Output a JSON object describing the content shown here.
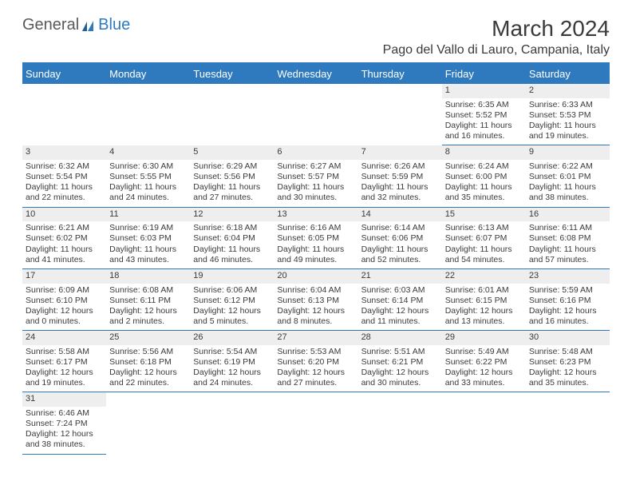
{
  "logo": {
    "text1": "General",
    "text2": "Blue",
    "color1": "#5a5a5a",
    "color2": "#2f7abf"
  },
  "title": "March 2024",
  "subtitle": "Pago del Vallo di Lauro, Campania, Italy",
  "weekdays": [
    "Sunday",
    "Monday",
    "Tuesday",
    "Wednesday",
    "Thursday",
    "Friday",
    "Saturday"
  ],
  "colors": {
    "header_bg": "#2f7abf",
    "header_fg": "#ffffff",
    "daynum_bg": "#eeeeee",
    "border": "#2f7abf",
    "text": "#3a3a3a"
  },
  "grid": [
    [
      null,
      null,
      null,
      null,
      null,
      {
        "n": "1",
        "r": "Sunrise: 6:35 AM",
        "s": "Sunset: 5:52 PM",
        "d1": "Daylight: 11 hours",
        "d2": "and 16 minutes."
      },
      {
        "n": "2",
        "r": "Sunrise: 6:33 AM",
        "s": "Sunset: 5:53 PM",
        "d1": "Daylight: 11 hours",
        "d2": "and 19 minutes."
      }
    ],
    [
      {
        "n": "3",
        "r": "Sunrise: 6:32 AM",
        "s": "Sunset: 5:54 PM",
        "d1": "Daylight: 11 hours",
        "d2": "and 22 minutes."
      },
      {
        "n": "4",
        "r": "Sunrise: 6:30 AM",
        "s": "Sunset: 5:55 PM",
        "d1": "Daylight: 11 hours",
        "d2": "and 24 minutes."
      },
      {
        "n": "5",
        "r": "Sunrise: 6:29 AM",
        "s": "Sunset: 5:56 PM",
        "d1": "Daylight: 11 hours",
        "d2": "and 27 minutes."
      },
      {
        "n": "6",
        "r": "Sunrise: 6:27 AM",
        "s": "Sunset: 5:57 PM",
        "d1": "Daylight: 11 hours",
        "d2": "and 30 minutes."
      },
      {
        "n": "7",
        "r": "Sunrise: 6:26 AM",
        "s": "Sunset: 5:59 PM",
        "d1": "Daylight: 11 hours",
        "d2": "and 32 minutes."
      },
      {
        "n": "8",
        "r": "Sunrise: 6:24 AM",
        "s": "Sunset: 6:00 PM",
        "d1": "Daylight: 11 hours",
        "d2": "and 35 minutes."
      },
      {
        "n": "9",
        "r": "Sunrise: 6:22 AM",
        "s": "Sunset: 6:01 PM",
        "d1": "Daylight: 11 hours",
        "d2": "and 38 minutes."
      }
    ],
    [
      {
        "n": "10",
        "r": "Sunrise: 6:21 AM",
        "s": "Sunset: 6:02 PM",
        "d1": "Daylight: 11 hours",
        "d2": "and 41 minutes."
      },
      {
        "n": "11",
        "r": "Sunrise: 6:19 AM",
        "s": "Sunset: 6:03 PM",
        "d1": "Daylight: 11 hours",
        "d2": "and 43 minutes."
      },
      {
        "n": "12",
        "r": "Sunrise: 6:18 AM",
        "s": "Sunset: 6:04 PM",
        "d1": "Daylight: 11 hours",
        "d2": "and 46 minutes."
      },
      {
        "n": "13",
        "r": "Sunrise: 6:16 AM",
        "s": "Sunset: 6:05 PM",
        "d1": "Daylight: 11 hours",
        "d2": "and 49 minutes."
      },
      {
        "n": "14",
        "r": "Sunrise: 6:14 AM",
        "s": "Sunset: 6:06 PM",
        "d1": "Daylight: 11 hours",
        "d2": "and 52 minutes."
      },
      {
        "n": "15",
        "r": "Sunrise: 6:13 AM",
        "s": "Sunset: 6:07 PM",
        "d1": "Daylight: 11 hours",
        "d2": "and 54 minutes."
      },
      {
        "n": "16",
        "r": "Sunrise: 6:11 AM",
        "s": "Sunset: 6:08 PM",
        "d1": "Daylight: 11 hours",
        "d2": "and 57 minutes."
      }
    ],
    [
      {
        "n": "17",
        "r": "Sunrise: 6:09 AM",
        "s": "Sunset: 6:10 PM",
        "d1": "Daylight: 12 hours",
        "d2": "and 0 minutes."
      },
      {
        "n": "18",
        "r": "Sunrise: 6:08 AM",
        "s": "Sunset: 6:11 PM",
        "d1": "Daylight: 12 hours",
        "d2": "and 2 minutes."
      },
      {
        "n": "19",
        "r": "Sunrise: 6:06 AM",
        "s": "Sunset: 6:12 PM",
        "d1": "Daylight: 12 hours",
        "d2": "and 5 minutes."
      },
      {
        "n": "20",
        "r": "Sunrise: 6:04 AM",
        "s": "Sunset: 6:13 PM",
        "d1": "Daylight: 12 hours",
        "d2": "and 8 minutes."
      },
      {
        "n": "21",
        "r": "Sunrise: 6:03 AM",
        "s": "Sunset: 6:14 PM",
        "d1": "Daylight: 12 hours",
        "d2": "and 11 minutes."
      },
      {
        "n": "22",
        "r": "Sunrise: 6:01 AM",
        "s": "Sunset: 6:15 PM",
        "d1": "Daylight: 12 hours",
        "d2": "and 13 minutes."
      },
      {
        "n": "23",
        "r": "Sunrise: 5:59 AM",
        "s": "Sunset: 6:16 PM",
        "d1": "Daylight: 12 hours",
        "d2": "and 16 minutes."
      }
    ],
    [
      {
        "n": "24",
        "r": "Sunrise: 5:58 AM",
        "s": "Sunset: 6:17 PM",
        "d1": "Daylight: 12 hours",
        "d2": "and 19 minutes."
      },
      {
        "n": "25",
        "r": "Sunrise: 5:56 AM",
        "s": "Sunset: 6:18 PM",
        "d1": "Daylight: 12 hours",
        "d2": "and 22 minutes."
      },
      {
        "n": "26",
        "r": "Sunrise: 5:54 AM",
        "s": "Sunset: 6:19 PM",
        "d1": "Daylight: 12 hours",
        "d2": "and 24 minutes."
      },
      {
        "n": "27",
        "r": "Sunrise: 5:53 AM",
        "s": "Sunset: 6:20 PM",
        "d1": "Daylight: 12 hours",
        "d2": "and 27 minutes."
      },
      {
        "n": "28",
        "r": "Sunrise: 5:51 AM",
        "s": "Sunset: 6:21 PM",
        "d1": "Daylight: 12 hours",
        "d2": "and 30 minutes."
      },
      {
        "n": "29",
        "r": "Sunrise: 5:49 AM",
        "s": "Sunset: 6:22 PM",
        "d1": "Daylight: 12 hours",
        "d2": "and 33 minutes."
      },
      {
        "n": "30",
        "r": "Sunrise: 5:48 AM",
        "s": "Sunset: 6:23 PM",
        "d1": "Daylight: 12 hours",
        "d2": "and 35 minutes."
      }
    ],
    [
      {
        "n": "31",
        "r": "Sunrise: 6:46 AM",
        "s": "Sunset: 7:24 PM",
        "d1": "Daylight: 12 hours",
        "d2": "and 38 minutes."
      },
      null,
      null,
      null,
      null,
      null,
      null
    ]
  ]
}
